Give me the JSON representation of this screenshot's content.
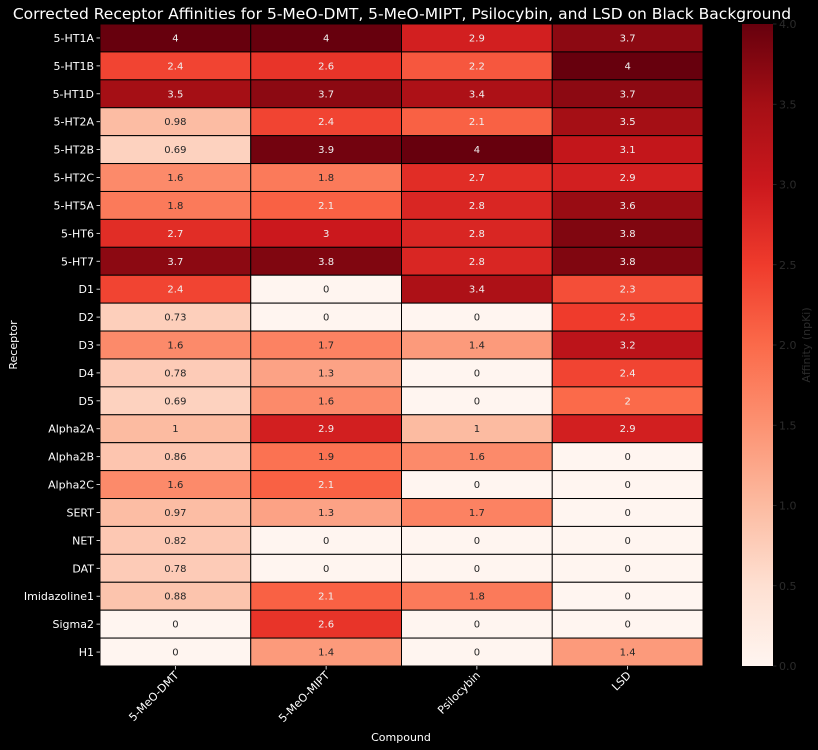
{
  "chart_data": {
    "type": "heatmap",
    "title": "Corrected Receptor Affinities for 5-MeO-DMT, 5-MeO-MIPT, Psilocybin, and LSD on Black Background",
    "xlabel": "Compound",
    "ylabel": "Receptor",
    "colorbar_label": "Affinity (npKi)",
    "colormap": "Reds",
    "vmin": 0.0,
    "vmax": 4.0,
    "colorbar_ticks": [
      "0.0",
      "0.5",
      "1.0",
      "1.5",
      "2.0",
      "2.5",
      "3.0",
      "3.5",
      "4.0"
    ],
    "x_categories": [
      "5-MeO-DMT",
      "5-MeO-MIPT",
      "Psilocybin",
      "LSD"
    ],
    "y_categories": [
      "5-HT1A",
      "5-HT1B",
      "5-HT1D",
      "5-HT2A",
      "5-HT2B",
      "5-HT2C",
      "5-HT5A",
      "5-HT6",
      "5-HT7",
      "D1",
      "D2",
      "D3",
      "D4",
      "D5",
      "Alpha2A",
      "Alpha2B",
      "Alpha2C",
      "SERT",
      "NET",
      "DAT",
      "Imidazoline1",
      "Sigma2",
      "H1"
    ],
    "values": [
      [
        4,
        4,
        2.9,
        3.7
      ],
      [
        2.4,
        2.6,
        2.2,
        4
      ],
      [
        3.5,
        3.7,
        3.4,
        3.7
      ],
      [
        0.98,
        2.4,
        2.1,
        3.5
      ],
      [
        0.69,
        3.9,
        4,
        3.1
      ],
      [
        1.6,
        1.8,
        2.7,
        2.9
      ],
      [
        1.8,
        2.1,
        2.8,
        3.6
      ],
      [
        2.7,
        3,
        2.8,
        3.8
      ],
      [
        3.7,
        3.8,
        2.8,
        3.8
      ],
      [
        2.4,
        0,
        3.4,
        2.3
      ],
      [
        0.73,
        0,
        0,
        2.5
      ],
      [
        1.6,
        1.7,
        1.4,
        3.2
      ],
      [
        0.78,
        1.3,
        0,
        2.4
      ],
      [
        0.69,
        1.6,
        0,
        2
      ],
      [
        1,
        2.9,
        1,
        2.9
      ],
      [
        0.86,
        1.9,
        1.6,
        0
      ],
      [
        1.6,
        2.1,
        0,
        0
      ],
      [
        0.97,
        1.3,
        1.7,
        0
      ],
      [
        0.82,
        0,
        0,
        0
      ],
      [
        0.78,
        0,
        0,
        0
      ],
      [
        0.88,
        2.1,
        1.8,
        0
      ],
      [
        0,
        2.6,
        0,
        0
      ],
      [
        0,
        1.4,
        0,
        1.4
      ]
    ],
    "cell_border_color": "#000000",
    "background": "#000000"
  }
}
